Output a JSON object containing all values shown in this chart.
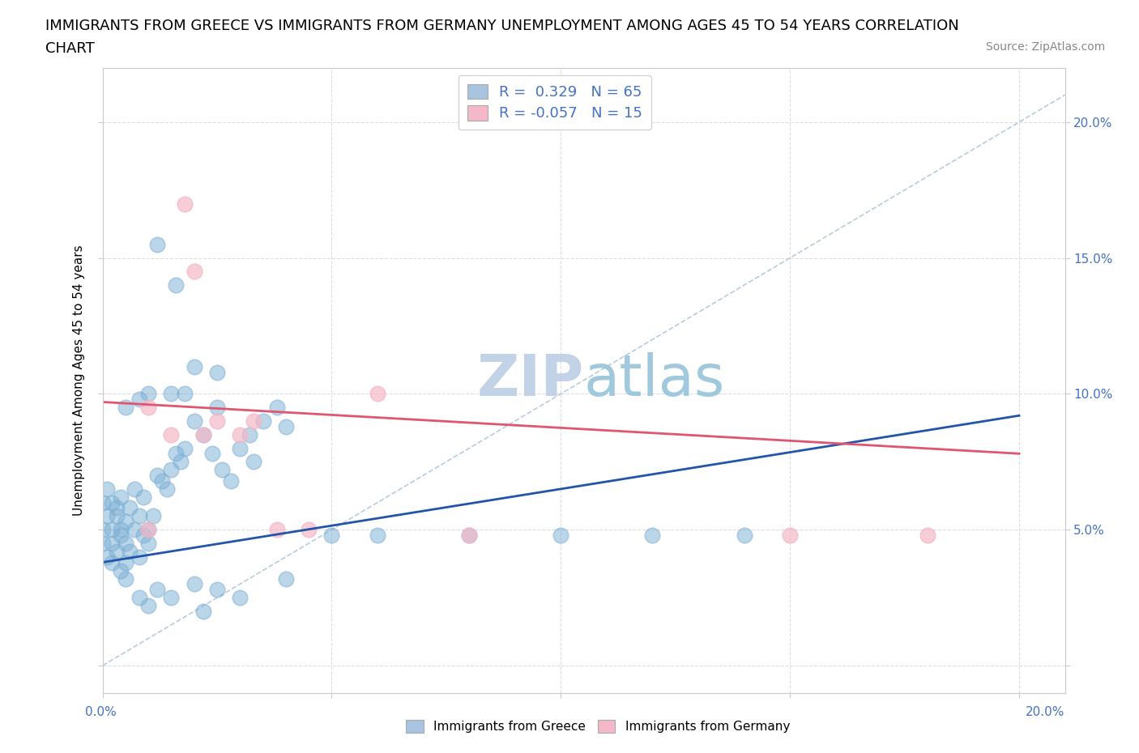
{
  "title_line1": "IMMIGRANTS FROM GREECE VS IMMIGRANTS FROM GERMANY UNEMPLOYMENT AMONG AGES 45 TO 54 YEARS CORRELATION",
  "title_line2": "CHART",
  "source_text": "Source: ZipAtlas.com",
  "ylabel": "Unemployment Among Ages 45 to 54 years",
  "xlim": [
    0.0,
    0.21
  ],
  "ylim": [
    -0.01,
    0.22
  ],
  "legend_label1": "R =  0.329   N = 65",
  "legend_label2": "R = -0.057   N = 15",
  "legend_color1": "#a8c4e0",
  "legend_color2": "#f4b8c8",
  "greece_color": "#7bafd4",
  "germany_color": "#f4b8c8",
  "trendline_greece_color": "#2255aa",
  "trendline_germany_color": "#e05570",
  "diag_color": "#b8ccdd",
  "watermark_color": "#c8ddf0",
  "tick_color": "#4472c4",
  "title_fontsize": 13,
  "source_fontsize": 10,
  "axis_label_fontsize": 11,
  "tick_fontsize": 11,
  "background_color": "#ffffff",
  "grid_color": "#dddddd",
  "yticks": [
    0.0,
    0.05,
    0.1,
    0.15,
    0.2
  ],
  "ytick_labels": [
    "",
    "5.0%",
    "10.0%",
    "15.0%",
    "20.0%"
  ],
  "xticks": [
    0.0,
    0.05,
    0.1,
    0.15,
    0.2
  ],
  "scatter_size": 180,
  "scatter_lw": 1.2
}
